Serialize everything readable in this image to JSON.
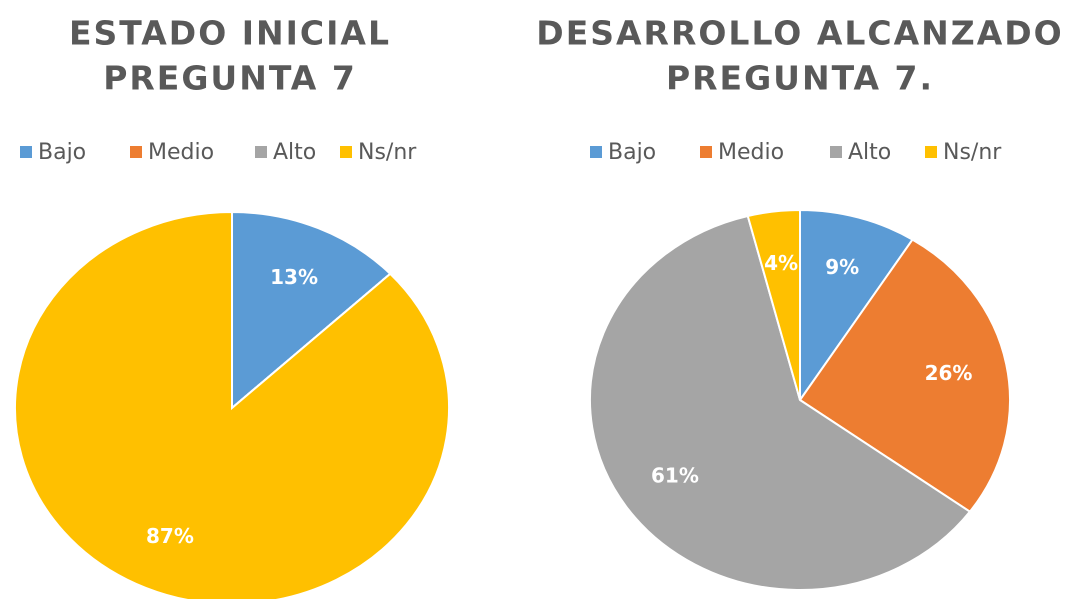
{
  "chart_data": [
    {
      "type": "pie",
      "title": [
        "ESTADO INICIAL",
        "PREGUNTA 7"
      ],
      "categories": [
        "Bajo",
        "Medio",
        "Alto",
        "Ns/nr"
      ],
      "values": [
        13,
        0,
        0,
        87
      ],
      "value_labels": [
        "13%",
        null,
        null,
        "87%"
      ],
      "colors": [
        "#5b9bd5",
        "#ed7d31",
        "#a5a5a5",
        "#ffc000"
      ],
      "legend": "top"
    },
    {
      "type": "pie",
      "title": [
        "DESARROLLO ALCANZADO",
        "PREGUNTA 7."
      ],
      "categories": [
        "Bajo",
        "Medio",
        "Alto",
        "Ns/nr"
      ],
      "values": [
        9,
        26,
        61,
        4
      ],
      "value_labels": [
        "9%",
        "26%",
        "61%",
        "4%"
      ],
      "colors": [
        "#5b9bd5",
        "#ed7d31",
        "#a5a5a5",
        "#ffc000"
      ],
      "legend": "top"
    }
  ]
}
